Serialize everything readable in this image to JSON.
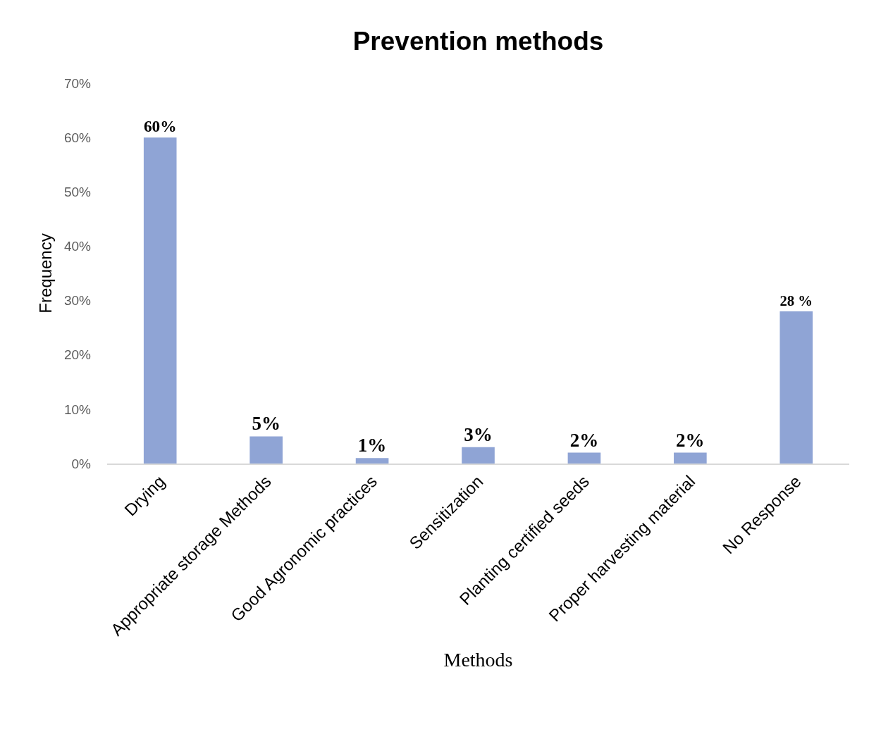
{
  "chart_data": {
    "type": "bar",
    "title": "Prevention methods",
    "xlabel": "Methods",
    "ylabel": "Frequency",
    "categories": [
      "Drying",
      "Appropriate storage Methods",
      "Good Agronomic practices",
      "Sensitization",
      "Planting certified seeds",
      "Proper harvesting material",
      "No Response"
    ],
    "values": [
      60,
      5,
      1,
      3,
      2,
      2,
      28
    ],
    "value_labels": [
      "60%",
      "5%",
      "1%",
      "3%",
      "2%",
      "2%",
      "28 %"
    ],
    "color": "#8fa4d5",
    "ylim": [
      0,
      70
    ],
    "yticks": [
      {
        "value": 0,
        "label": "0%"
      },
      {
        "value": 10,
        "label": "10%"
      },
      {
        "value": 20,
        "label": "20%"
      },
      {
        "value": 30,
        "label": "30%"
      },
      {
        "value": 40,
        "label": "40%"
      },
      {
        "value": 50,
        "label": "50%"
      },
      {
        "value": 60,
        "label": "60%"
      },
      {
        "value": 70,
        "label": "70%"
      }
    ],
    "grid": false
  }
}
